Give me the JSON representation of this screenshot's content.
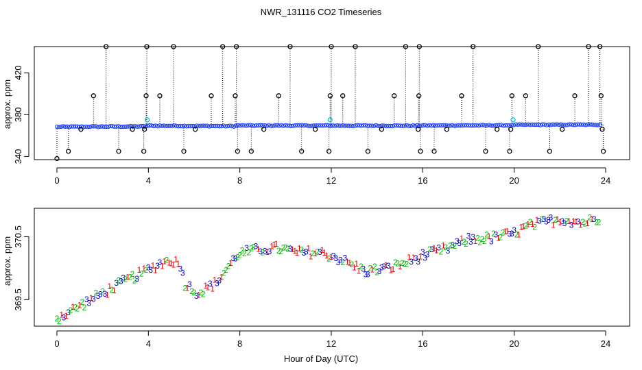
{
  "colors": {
    "background": "#ffffff",
    "axis": "#000000",
    "outlier": "#000000",
    "mean": "#1f3fff",
    "flagged": "#00cccc",
    "digit1": "#ee0000",
    "digit2": "#00bb00",
    "digit3": "#0000cc"
  },
  "chart_data": [
    {
      "type": "scatter",
      "title": "NWR_131116  CO2 Timeseries",
      "xlabel": "",
      "ylabel": "approx. ppm",
      "xlim": [
        0,
        24
      ],
      "ylim": [
        337,
        445
      ],
      "xticks": [
        "0",
        "4",
        "8",
        "12",
        "16",
        "20",
        "24"
      ],
      "yticks": [
        "340",
        "380",
        "420"
      ],
      "grid": false,
      "notes": "Dense blue series of 10-second values near 368-370 ppm with black vertical dotted spikes to outliers at ~345 and ~445 ppm; cyan points are flagged values.",
      "baseline": {
        "name": "co2",
        "x": [
          0,
          3.9,
          4.0,
          7.8,
          7.9,
          15.8,
          15.9,
          19.9,
          20.0,
          23.8
        ],
        "y": [
          368.4,
          368.8,
          369.4,
          369.0,
          369.6,
          369.4,
          369.6,
          369.8,
          370.3,
          370.4
        ]
      },
      "flagged": {
        "name": "flagged",
        "x": [
          3.95,
          11.95,
          19.95
        ],
        "y": [
          375,
          375,
          375
        ]
      },
      "outliers": {
        "name": "outliers",
        "x": [
          0.0,
          0.5,
          1.05,
          1.6,
          2.15,
          2.7,
          3.3,
          3.8,
          3.83,
          3.9,
          3.93,
          4.5,
          5.1,
          5.55,
          6.05,
          6.75,
          7.25,
          7.8,
          7.85,
          7.9,
          8.5,
          9.05,
          9.7,
          10.2,
          10.7,
          11.3,
          11.9,
          11.95,
          12.0,
          12.5,
          13.05,
          13.6,
          14.2,
          14.75,
          15.25,
          15.8,
          15.83,
          15.85,
          15.9,
          16.5,
          17.05,
          17.7,
          18.2,
          18.75,
          19.25,
          19.8,
          19.85,
          19.9,
          20.5,
          21.05,
          21.55,
          22.1,
          22.65,
          23.25,
          23.75,
          23.8,
          23.85,
          23.9
        ],
        "y": [
          338,
          345,
          366,
          398,
          445,
          345,
          366,
          345,
          366,
          398,
          445,
          398,
          445,
          345,
          366,
          398,
          445,
          398,
          445,
          345,
          345,
          366,
          398,
          445,
          345,
          366,
          345,
          398,
          445,
          398,
          445,
          345,
          366,
          398,
          445,
          366,
          398,
          445,
          345,
          345,
          366,
          398,
          445,
          345,
          366,
          345,
          366,
          398,
          398,
          445,
          345,
          366,
          398,
          445,
          445,
          398,
          366,
          345
        ]
      }
    },
    {
      "type": "scatter",
      "title": "",
      "xlabel": "Hour of Day (UTC)",
      "ylabel": "approx. ppm",
      "xlim": [
        0,
        24
      ],
      "ylim": [
        369.08,
        370.95
      ],
      "xticks": [
        "0",
        "4",
        "8",
        "12",
        "16",
        "20",
        "24"
      ],
      "yticks": [
        "369.5",
        "370.5"
      ],
      "grid": false,
      "notes": "Points plotted as digit characters 1 (red), 2 (green), 3 (blue) indicating sample group.",
      "markers": [
        "1",
        "2",
        "3"
      ],
      "trend": {
        "x": [
          0,
          1,
          2,
          3,
          4,
          4.5,
          5,
          5.4,
          5.6,
          6.2,
          7,
          7.9,
          8.5,
          9,
          9.6,
          10.5,
          11.5,
          12,
          12.8,
          13.5,
          14.5,
          15.2,
          16,
          17,
          18,
          19,
          20,
          20.5,
          21,
          22,
          23,
          23.8
        ],
        "y": [
          369.2,
          369.4,
          369.6,
          369.8,
          369.97,
          370.07,
          370.13,
          370.05,
          369.75,
          369.6,
          369.78,
          370.22,
          370.27,
          370.3,
          370.32,
          370.25,
          370.25,
          370.2,
          370.07,
          369.95,
          370.0,
          370.08,
          370.2,
          370.3,
          370.45,
          370.48,
          370.55,
          370.65,
          370.7,
          370.78,
          370.72,
          370.8
        ]
      }
    }
  ]
}
